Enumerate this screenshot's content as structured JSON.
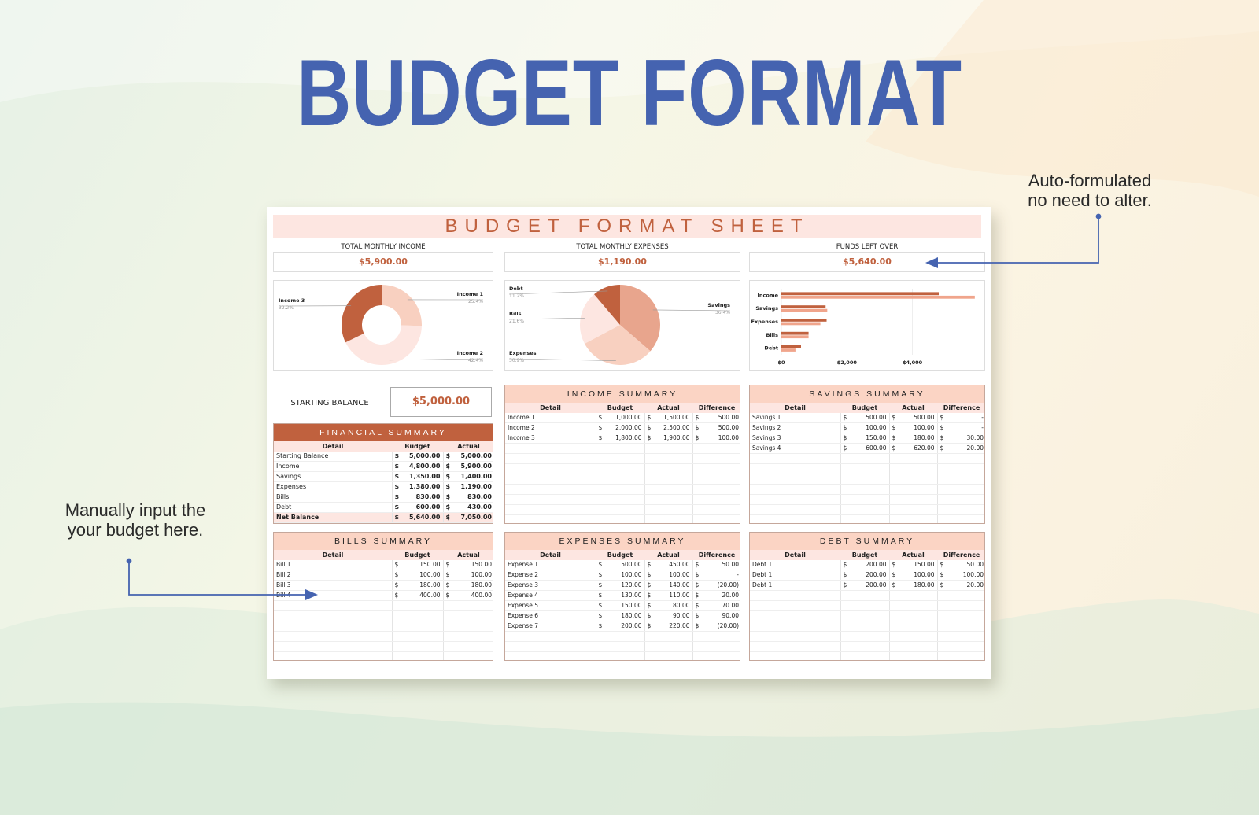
{
  "hero_title": "BUDGET FORMAT",
  "callouts": {
    "auto": [
      "Auto-formulated",
      "no need to alter."
    ],
    "manual": [
      "Manually input the",
      "your budget here."
    ]
  },
  "colors": {
    "accent": "#c0613e",
    "title_blue": "#4563b0",
    "peach_light": "#fde6e1",
    "peach_mid": "#fbd4c4",
    "arrow": "#4563b0"
  },
  "sheet": {
    "title": "BUDGET FORMAT SHEET",
    "kpis": [
      {
        "label": "TOTAL MONTHLY INCOME",
        "value": "$5,900.00"
      },
      {
        "label": "TOTAL MONTHLY EXPENSES",
        "value": "$1,190.00"
      },
      {
        "label": "FUNDS LEFT OVER",
        "value": "$5,640.00"
      }
    ],
    "starting_balance": {
      "label": "STARTING BALANCE",
      "value": "$5,000.00"
    },
    "financial_summary": {
      "title": "FINANCIAL SUMMARY",
      "columns": [
        "Detail",
        "Budget",
        "Actual"
      ],
      "rows": [
        [
          "Starting Balance",
          "5,000.00",
          "5,000.00"
        ],
        [
          "Income",
          "4,800.00",
          "5,900.00"
        ],
        [
          "Savings",
          "1,350.00",
          "1,400.00"
        ],
        [
          "Expenses",
          "1,380.00",
          "1,190.00"
        ],
        [
          "Bills",
          "830.00",
          "830.00"
        ],
        [
          "Debt",
          "600.00",
          "430.00"
        ],
        [
          "Net Balance",
          "5,640.00",
          "7,050.00"
        ]
      ]
    },
    "income_summary": {
      "title": "INCOME SUMMARY",
      "columns": [
        "Detail",
        "Budget",
        "Actual",
        "Difference"
      ],
      "rows": [
        [
          "Income 1",
          "1,000.00",
          "1,500.00",
          "500.00"
        ],
        [
          "Income 2",
          "2,000.00",
          "2,500.00",
          "500.00"
        ],
        [
          "Income 3",
          "1,800.00",
          "1,900.00",
          "100.00"
        ]
      ]
    },
    "savings_summary": {
      "title": "SAVINGS SUMMARY",
      "columns": [
        "Detail",
        "Budget",
        "Actual",
        "Difference"
      ],
      "rows": [
        [
          "Savings 1",
          "500.00",
          "500.00",
          "-"
        ],
        [
          "Savings 2",
          "100.00",
          "100.00",
          "-"
        ],
        [
          "Savings 3",
          "150.00",
          "180.00",
          "30.00"
        ],
        [
          "Savings 4",
          "600.00",
          "620.00",
          "20.00"
        ]
      ]
    },
    "bills_summary": {
      "title": "BILLS SUMMARY",
      "columns": [
        "Detail",
        "Budget",
        "Actual"
      ],
      "rows": [
        [
          "Bill 1",
          "150.00",
          "150.00"
        ],
        [
          "Bill 2",
          "100.00",
          "100.00"
        ],
        [
          "Bill 3",
          "180.00",
          "180.00"
        ],
        [
          "Bill 4",
          "400.00",
          "400.00"
        ]
      ]
    },
    "expenses_summary": {
      "title": "EXPENSES SUMMARY",
      "columns": [
        "Detail",
        "Budget",
        "Actual",
        "Difference"
      ],
      "rows": [
        [
          "Expense 1",
          "500.00",
          "450.00",
          "50.00"
        ],
        [
          "Expense 2",
          "100.00",
          "100.00",
          "-"
        ],
        [
          "Expense 3",
          "120.00",
          "140.00",
          "(20.00)"
        ],
        [
          "Expense 4",
          "130.00",
          "110.00",
          "20.00"
        ],
        [
          "Expense 5",
          "150.00",
          "80.00",
          "70.00"
        ],
        [
          "Expense 6",
          "180.00",
          "90.00",
          "90.00"
        ],
        [
          "Expense 7",
          "200.00",
          "220.00",
          "(20.00)"
        ]
      ]
    },
    "debt_summary": {
      "title": "DEBT SUMMARY",
      "columns": [
        "Detail",
        "Budget",
        "Actual",
        "Difference"
      ],
      "rows": [
        [
          "Debt 1",
          "200.00",
          "150.00",
          "50.00"
        ],
        [
          "Debt 1",
          "200.00",
          "100.00",
          "100.00"
        ],
        [
          "Debt 1",
          "200.00",
          "180.00",
          "20.00"
        ]
      ]
    },
    "currency_symbol": "$"
  },
  "chart_data": [
    {
      "type": "pie",
      "subtype": "donut",
      "categories": [
        "Income 1",
        "Income 2",
        "Income 3"
      ],
      "values": [
        25.4,
        42.4,
        32.2
      ],
      "labels": [
        "25.4%",
        "42.4%",
        "32.2%"
      ],
      "colors": [
        "#f8d0c0",
        "#fde6e1",
        "#c0613e"
      ]
    },
    {
      "type": "pie",
      "categories": [
        "Savings",
        "Expenses",
        "Bills",
        "Debt"
      ],
      "values": [
        36.4,
        30.9,
        21.6,
        11.2
      ],
      "labels": [
        "36.4%",
        "30.9%",
        "21.6%",
        "11.2%"
      ],
      "colors": [
        "#e8a58d",
        "#f8d0c0",
        "#fde6e1",
        "#c0613e"
      ]
    },
    {
      "type": "bar",
      "orientation": "horizontal",
      "categories": [
        "Income",
        "Savings",
        "Expenses",
        "Bills",
        "Debt"
      ],
      "series": [
        {
          "values": [
            4800,
            1350,
            1380,
            830,
            600
          ],
          "color": "#c0613e"
        },
        {
          "values": [
            5900,
            1400,
            1190,
            830,
            430
          ],
          "color": "#f0a58c"
        }
      ],
      "xticks": [
        "$0",
        "$2,000",
        "$4,000"
      ],
      "xlim": [
        0,
        6000
      ],
      "grid": true
    }
  ]
}
